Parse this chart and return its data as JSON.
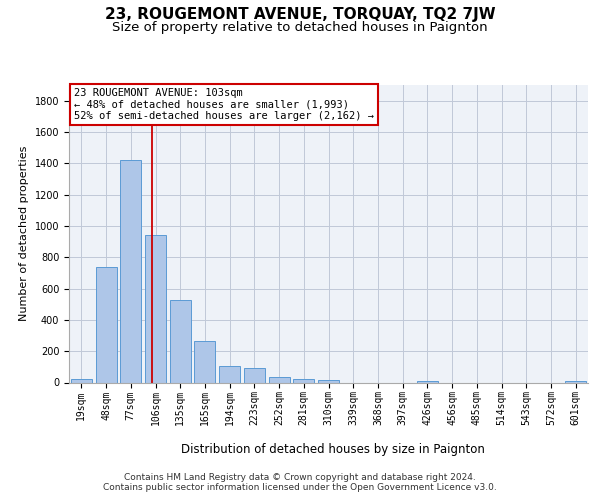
{
  "title": "23, ROUGEMONT AVENUE, TORQUAY, TQ2 7JW",
  "subtitle": "Size of property relative to detached houses in Paignton",
  "xlabel": "Distribution of detached houses by size in Paignton",
  "ylabel": "Number of detached properties",
  "footer_line1": "Contains HM Land Registry data © Crown copyright and database right 2024.",
  "footer_line2": "Contains public sector information licensed under the Open Government Licence v3.0.",
  "bar_labels": [
    "19sqm",
    "48sqm",
    "77sqm",
    "106sqm",
    "135sqm",
    "165sqm",
    "194sqm",
    "223sqm",
    "252sqm",
    "281sqm",
    "310sqm",
    "339sqm",
    "368sqm",
    "397sqm",
    "426sqm",
    "456sqm",
    "485sqm",
    "514sqm",
    "543sqm",
    "572sqm",
    "601sqm"
  ],
  "bar_values": [
    20,
    740,
    1420,
    940,
    530,
    265,
    105,
    90,
    35,
    25,
    15,
    0,
    0,
    0,
    10,
    0,
    0,
    0,
    0,
    0,
    10
  ],
  "bar_color": "#aec6e8",
  "bar_edge_color": "#5b9bd5",
  "property_line_x": 2.85,
  "annotation_text_line1": "23 ROUGEMONT AVENUE: 103sqm",
  "annotation_text_line2": "← 48% of detached houses are smaller (1,993)",
  "annotation_text_line3": "52% of semi-detached houses are larger (2,162) →",
  "annotation_box_color": "#cc0000",
  "ylim": [
    0,
    1900
  ],
  "yticks": [
    0,
    200,
    400,
    600,
    800,
    1000,
    1200,
    1400,
    1600,
    1800
  ],
  "grid_color": "#c0c8d8",
  "background_color": "#eef2f8",
  "fig_background": "#ffffff",
  "title_fontsize": 11,
  "subtitle_fontsize": 9.5,
  "xlabel_fontsize": 8.5,
  "ylabel_fontsize": 8,
  "tick_fontsize": 7,
  "annotation_fontsize": 7.5,
  "footer_fontsize": 6.5
}
